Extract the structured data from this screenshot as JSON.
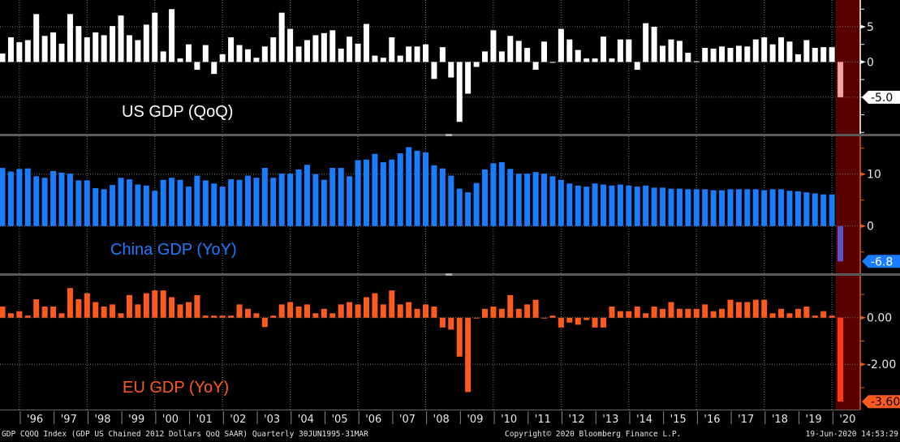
{
  "chart_data": [
    {
      "type": "bar",
      "title": "US GDP (QoQ)",
      "x_start": "1995Q2",
      "x_end": "2020Q1",
      "frequency": "Quarterly",
      "ylim": [
        -10.2,
        8.8
      ],
      "y_ticks": [
        {
          "value": 5,
          "label": "5"
        },
        {
          "value": 0,
          "label": "0"
        }
      ],
      "minor_tick_step": 2.5,
      "grid_values": [
        5,
        0,
        -5
      ],
      "last_value_label": "-5.0",
      "color": "#ffffff",
      "last_color": "#f4a3a3",
      "axis_color": "#ffffff",
      "tag_bg": "#ffffff",
      "tag_fg": "#000000",
      "values": [
        1.2,
        3.5,
        2.8,
        3.1,
        6.8,
        3.7,
        4.2,
        2.6,
        6.8,
        5.1,
        3.5,
        4.2,
        3.8,
        5.1,
        6.6,
        3.8,
        3.1,
        5.3,
        7.0,
        1.5,
        7.5,
        0.5,
        2.5,
        -1.1,
        2.4,
        -1.7,
        1.1,
        3.5,
        2.4,
        1.8,
        0.6,
        2.2,
        3.5,
        7.0,
        4.7,
        2.2,
        3.1,
        3.8,
        4.1,
        4.5,
        1.9,
        3.6,
        2.6,
        5.4,
        0.9,
        0.6,
        3.5,
        0.9,
        2.2,
        2.2,
        2.5,
        -2.4,
        2.1,
        -2.2,
        -8.5,
        -4.5,
        -0.7,
        1.5,
        4.5,
        1.5,
        3.7,
        3.0,
        2.0,
        -1.1,
        2.9,
        0.0,
        4.7,
        3.2,
        1.7,
        0.5,
        0.5,
        3.6,
        0.5,
        3.2,
        3.2,
        -1.1,
        5.5,
        5.0,
        2.3,
        3.2,
        3.0,
        1.3,
        0.1,
        2.0,
        1.9,
        2.2,
        2.0,
        2.3,
        2.2,
        3.2,
        3.5,
        2.5,
        3.5,
        2.9,
        1.1,
        3.1,
        2.0,
        2.1,
        2.1,
        -5.0
      ]
    },
    {
      "type": "bar",
      "title": "China GDP (YoY)",
      "x_start": "1995Q2",
      "x_end": "2020Q1",
      "frequency": "Quarterly",
      "ylim": [
        -9.1,
        17.3
      ],
      "y_ticks": [
        {
          "value": 10,
          "label": "10"
        },
        {
          "value": 0,
          "label": "0"
        }
      ],
      "minor_tick_step": 5,
      "grid_values": [
        10,
        0
      ],
      "last_value_label": "-6.8",
      "color": "#1a7cff",
      "last_color": "#5656c4",
      "axis_color": "#e0601c",
      "tag_bg": "#1a7cff",
      "tag_fg": "#ffffff",
      "values": [
        11.2,
        10.5,
        11.0,
        11.1,
        9.6,
        9.3,
        10.6,
        10.3,
        10.1,
        8.8,
        8.8,
        7.3,
        7.1,
        7.9,
        9.3,
        9.0,
        8.0,
        7.8,
        6.8,
        8.9,
        9.3,
        8.9,
        7.6,
        9.7,
        8.8,
        8.2,
        7.6,
        9.0,
        8.9,
        9.7,
        9.3,
        11.2,
        9.3,
        10.1,
        10.1,
        10.9,
        11.8,
        10.0,
        8.9,
        11.2,
        11.2,
        9.6,
        12.7,
        12.8,
        13.9,
        12.3,
        12.8,
        14.0,
        15.2,
        14.5,
        14.2,
        11.7,
        11.1,
        9.7,
        7.2,
        6.5,
        8.3,
        10.9,
        12.1,
        12.3,
        11.0,
        10.1,
        10.1,
        10.4,
        10.1,
        9.6,
        8.9,
        8.2,
        7.8,
        7.6,
        8.2,
        8.0,
        7.8,
        8.0,
        7.8,
        7.6,
        7.8,
        7.4,
        7.4,
        7.2,
        7.2,
        7.1,
        7.1,
        7.1,
        6.9,
        6.9,
        7.1,
        7.1,
        7.1,
        7.1,
        6.9,
        7.1,
        7.1,
        6.8,
        6.7,
        6.5,
        6.3,
        6.1,
        6.1,
        -6.8
      ]
    },
    {
      "type": "bar",
      "title": "EU GDP (YoY)",
      "x_start": "1995Q2",
      "x_end": "2020Q1",
      "frequency": "Quarterly",
      "ylim": [
        -3.94,
        1.8
      ],
      "y_ticks": [
        {
          "value": 0,
          "label": "0.00"
        },
        {
          "value": -2,
          "label": "-2.00"
        }
      ],
      "minor_tick_step": 1,
      "grid_values": [
        0,
        -2
      ],
      "last_value_label": "-3.60",
      "color": "#ff5a1e",
      "last_color": "#ff3a14",
      "axis_color": "#e0601c",
      "tag_bg": "#ff5a1e",
      "tag_fg": "#000000",
      "values": [
        0.48,
        0.19,
        0.28,
        0.09,
        0.79,
        0.48,
        0.48,
        0.19,
        1.27,
        0.79,
        1.05,
        0.67,
        0.48,
        0.57,
        0.19,
        0.97,
        0.57,
        1.05,
        1.17,
        1.17,
        0.88,
        0.57,
        0.67,
        0.97,
        0.09,
        0.09,
        0.09,
        0.09,
        0.57,
        0.38,
        0.19,
        -0.4,
        0.09,
        0.57,
        0.67,
        0.48,
        0.57,
        0.19,
        0.38,
        0.19,
        0.57,
        0.67,
        0.57,
        0.88,
        1.05,
        0.57,
        1.17,
        0.57,
        0.67,
        0.38,
        0.57,
        0.48,
        -0.42,
        -0.51,
        -1.67,
        -3.19,
        0.0,
        0.38,
        0.48,
        0.38,
        0.97,
        0.38,
        0.57,
        0.77,
        0.0,
        0.09,
        -0.42,
        -0.21,
        -0.3,
        -0.1,
        -0.42,
        -0.42,
        0.48,
        0.28,
        0.28,
        0.48,
        0.19,
        0.48,
        0.38,
        0.67,
        0.38,
        0.38,
        0.38,
        0.57,
        0.28,
        0.38,
        0.77,
        0.67,
        0.67,
        0.77,
        0.77,
        0.19,
        0.38,
        0.19,
        0.38,
        0.48,
        0.09,
        0.28,
        0.09,
        -3.6
      ]
    }
  ],
  "x_axis": {
    "tick_labels": [
      "'96",
      "'97",
      "'98",
      "'99",
      "'00",
      "'01",
      "'02",
      "'03",
      "'04",
      "'05",
      "'06",
      "'07",
      "'08",
      "'09",
      "'10",
      "'11",
      "'12",
      "'13",
      "'14",
      "'15",
      "'16",
      "'17",
      "'18",
      "'19",
      "'20"
    ]
  },
  "highlight_color": "#5a0000",
  "footer": {
    "description": "GDP CQOQ Index (GDP US Chained 2012 Dollars QoQ SAAR)  Quarterly 30JUN1995-31MAR",
    "copyright": "Copyright© 2020 Bloomberg Finance L.P.",
    "timestamp": "19-Jun-2020 14:53:29"
  }
}
